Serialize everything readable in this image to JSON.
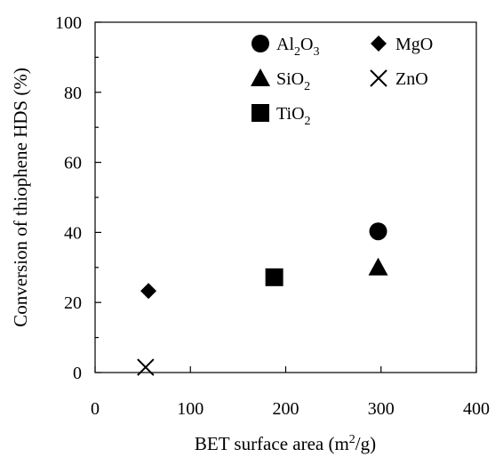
{
  "chart_data": {
    "type": "scatter",
    "xlabel": "BET surface area (m²/g)",
    "xlabel_parts": {
      "pre": "BET surface area (m",
      "sup": "2",
      "post": "/g)"
    },
    "ylabel": "Conversion of thiophene HDS (%)",
    "xlim": [
      0,
      400
    ],
    "ylim": [
      0,
      100
    ],
    "xticks": [
      0,
      100,
      200,
      300,
      400
    ],
    "yticks": [
      0,
      20,
      40,
      60,
      80,
      100
    ],
    "x_tick_labels": [
      "0",
      "100",
      "200",
      "300",
      "400"
    ],
    "y_tick_labels": [
      "0",
      "20",
      "40",
      "60",
      "80",
      "100"
    ],
    "grid": false,
    "legend_position": "top-right",
    "series": [
      {
        "name": "Al2O3",
        "label_parts": [
          "Al",
          "2",
          "O",
          "3"
        ],
        "marker": "circle",
        "x": [
          297
        ],
        "y": [
          40.3
        ]
      },
      {
        "name": "SiO2",
        "label_parts": [
          "SiO",
          "2"
        ],
        "marker": "triangle",
        "x": [
          297
        ],
        "y": [
          30
        ]
      },
      {
        "name": "TiO2",
        "label_parts": [
          "TiO",
          "2"
        ],
        "marker": "square",
        "x": [
          188
        ],
        "y": [
          27.2
        ]
      },
      {
        "name": "MgO",
        "label_parts": [
          "MgO"
        ],
        "marker": "diamond",
        "x": [
          56
        ],
        "y": [
          23.3
        ]
      },
      {
        "name": "ZnO",
        "label_parts": [
          "ZnO"
        ],
        "marker": "x",
        "x": [
          53
        ],
        "y": [
          1.5
        ]
      }
    ]
  }
}
